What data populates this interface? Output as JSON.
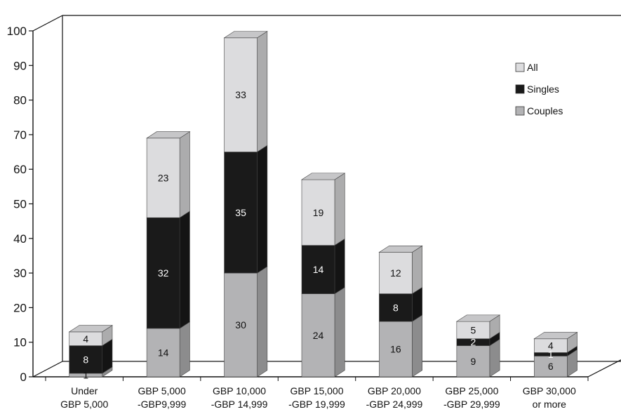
{
  "chart_data": {
    "type": "bar",
    "stacked": true,
    "three_d": true,
    "categories": [
      [
        "Under",
        "GBP 5,000"
      ],
      [
        "GBP 5,000",
        "-GBP9,999"
      ],
      [
        "GBP 10,000",
        "-GBP 14,999"
      ],
      [
        "GBP 15,000",
        "-GBP 19,999"
      ],
      [
        "GBP 20,000",
        "-GBP 24,999"
      ],
      [
        "GBP 25,000",
        "-GBP 29,999"
      ],
      [
        "GBP 30,000",
        "or more"
      ]
    ],
    "series": [
      {
        "name": "Couples",
        "color": "#b3b3b5",
        "values": [
          1,
          14,
          30,
          24,
          16,
          9,
          6
        ]
      },
      {
        "name": "Singles",
        "color": "#1a1a1a",
        "values": [
          8,
          32,
          35,
          14,
          8,
          2,
          1
        ]
      },
      {
        "name": "All",
        "color": "#dcdcde",
        "values": [
          4,
          23,
          33,
          19,
          12,
          5,
          4
        ]
      }
    ],
    "legend_order": [
      "All",
      "Singles",
      "Couples"
    ],
    "legend_position": "top-right",
    "ylim": [
      0,
      100
    ],
    "yticks": [
      0,
      10,
      20,
      30,
      40,
      50,
      60,
      70,
      80,
      90,
      100
    ],
    "title": "",
    "xlabel": "",
    "ylabel": "",
    "grid": false
  }
}
